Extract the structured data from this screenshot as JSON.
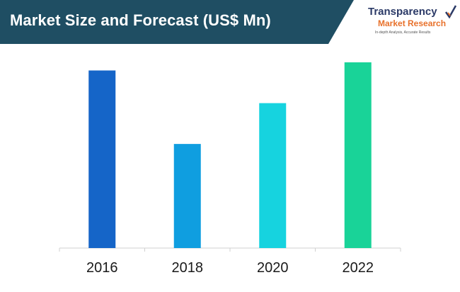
{
  "header": {
    "title": "Market Size and Forecast (US$ Mn)",
    "band_color": "#1f4e63"
  },
  "logo": {
    "name": "Transparency",
    "sub": "Market Research",
    "tagline": "In-depth Analysis, Accurate Results",
    "mark_icon": "check-mark-icon"
  },
  "chart_data": {
    "type": "bar",
    "title": "Market Size and Forecast (US$ Mn)",
    "categories": [
      "2016",
      "2018",
      "2020",
      "2022"
    ],
    "values": [
      87,
      51,
      71,
      91
    ],
    "colors": [
      "#1565c8",
      "#0f9ee0",
      "#16d3df",
      "#19d398"
    ],
    "ylim": [
      0,
      100
    ],
    "y_axis_shown": false,
    "grid": false,
    "xlabel": "",
    "ylabel": ""
  }
}
